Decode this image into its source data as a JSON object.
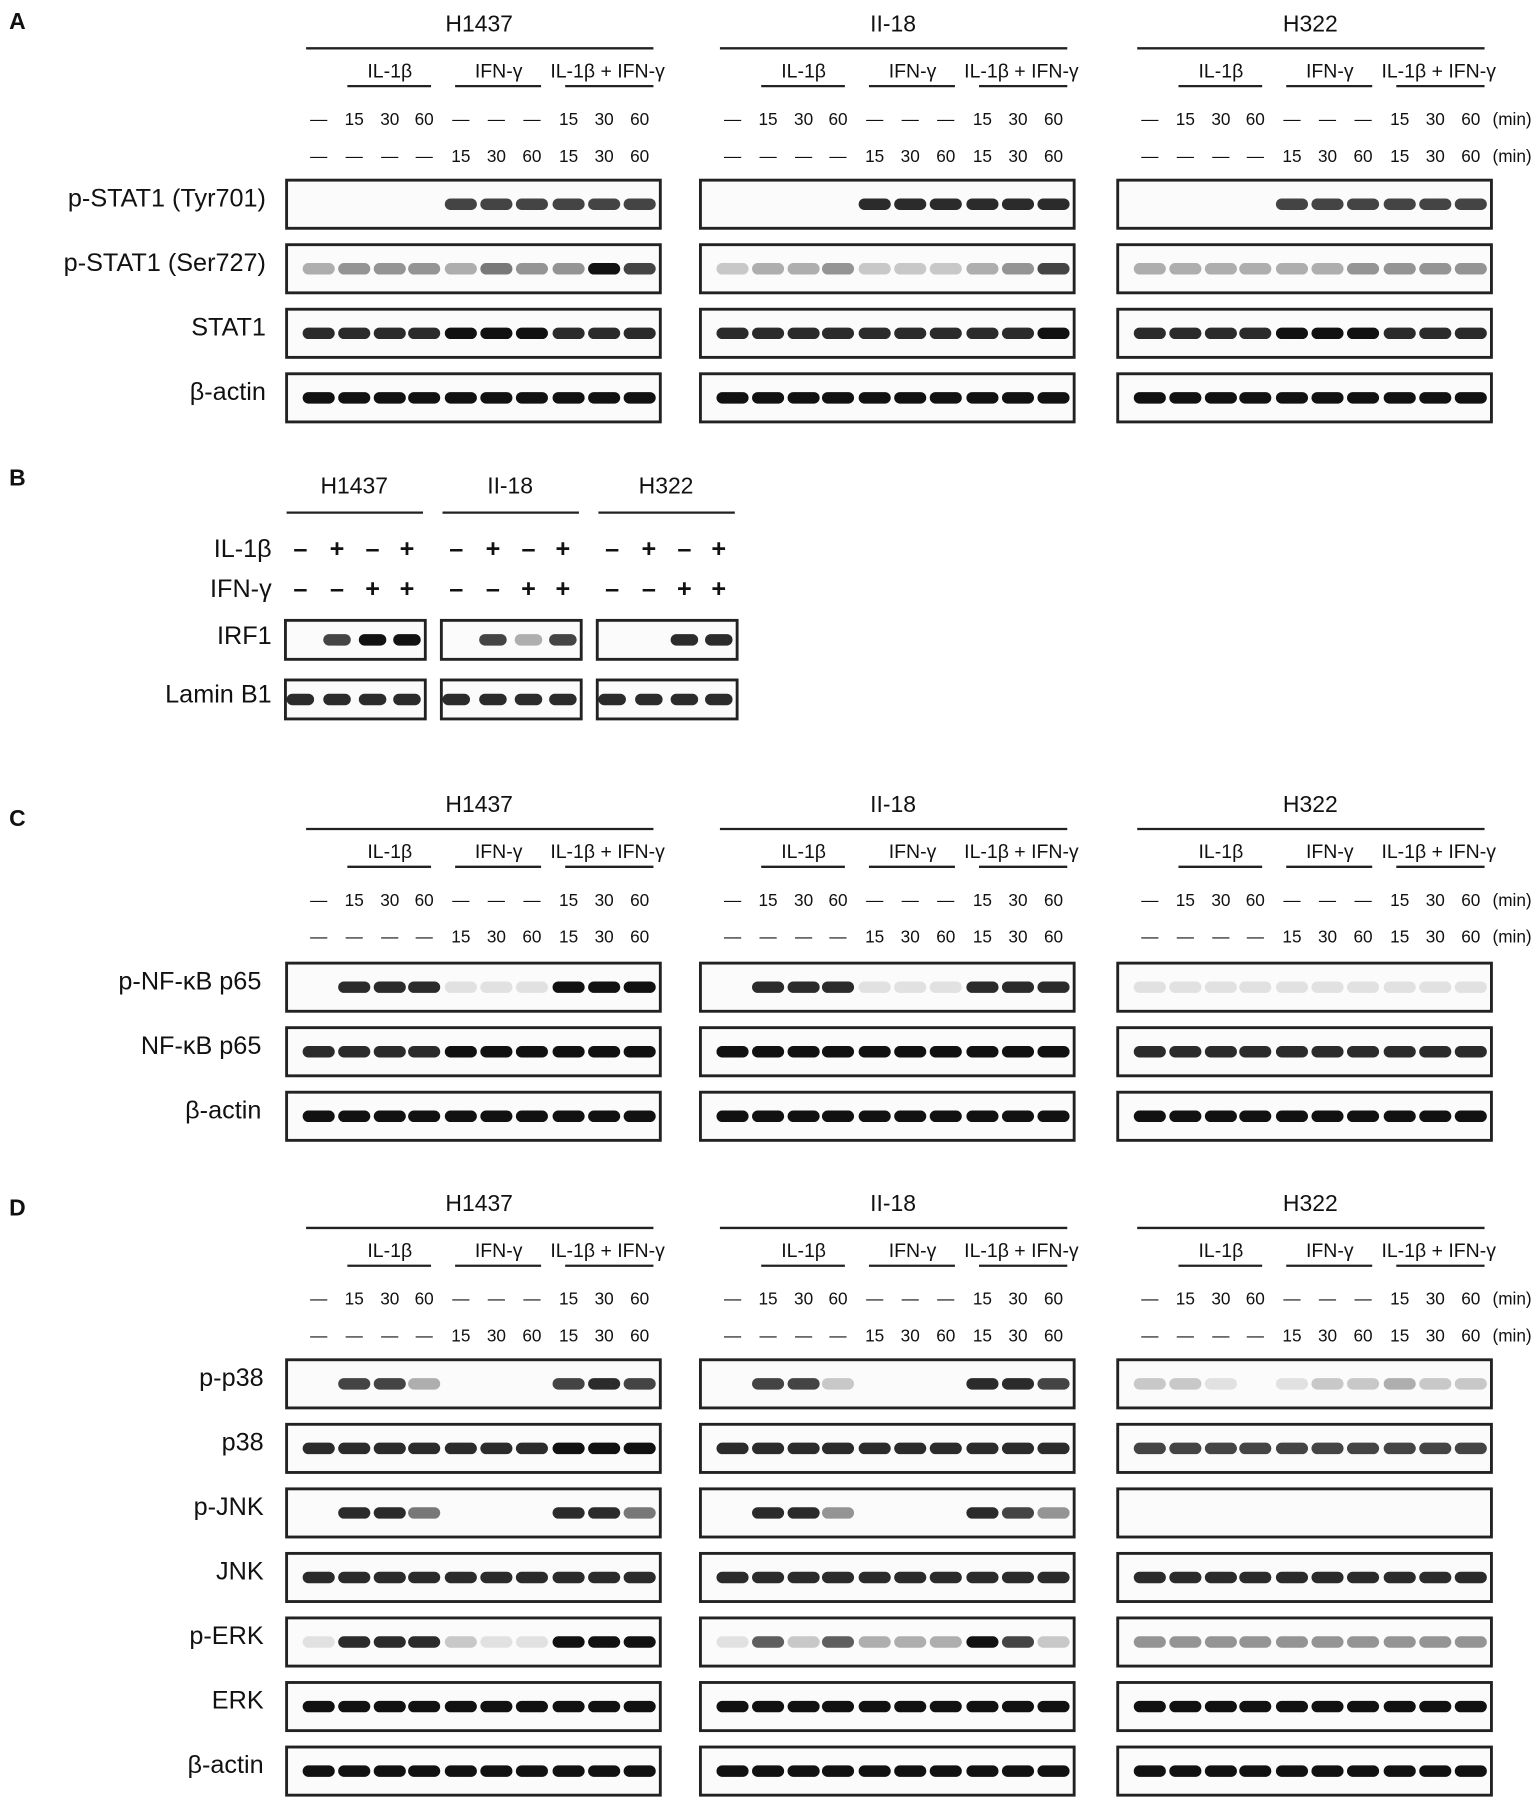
{
  "panels": [
    {
      "label": "A",
      "cell_lines": [
        "H1437",
        "II-18",
        "H322"
      ],
      "treatments": [
        "IL-1β",
        "IFN-γ",
        "IL-1β + IFN-γ"
      ],
      "il1b_times": [
        "—",
        "15",
        "30",
        "60",
        "—",
        "—",
        "—",
        "15",
        "30",
        "60"
      ],
      "ifng_times": [
        "—",
        "—",
        "—",
        "—",
        "15",
        "30",
        "60",
        "15",
        "30",
        "60"
      ],
      "time_unit": "(min)",
      "blots": [
        "p-STAT1 (Tyr701)",
        "p-STAT1 (Ser727)",
        "STAT1",
        "β-actin"
      ]
    },
    {
      "label": "B",
      "cell_lines": [
        "H1437",
        "II-18",
        "H322"
      ],
      "treatment_rows": [
        {
          "label": "IL-1β",
          "signs": [
            "–",
            "+",
            "–",
            "+"
          ]
        },
        {
          "label": "IFN-γ",
          "signs": [
            "–",
            "–",
            "+",
            "+"
          ]
        }
      ],
      "blots": [
        "IRF1",
        "Lamin B1"
      ]
    },
    {
      "label": "C",
      "cell_lines": [
        "H1437",
        "II-18",
        "H322"
      ],
      "treatments": [
        "IL-1β",
        "IFN-γ",
        "IL-1β + IFN-γ"
      ],
      "il1b_times": [
        "—",
        "15",
        "30",
        "60",
        "—",
        "—",
        "—",
        "15",
        "30",
        "60"
      ],
      "ifng_times": [
        "—",
        "—",
        "—",
        "—",
        "15",
        "30",
        "60",
        "15",
        "30",
        "60"
      ],
      "time_unit": "(min)",
      "blots": [
        "p-NF-κB p65",
        "NF-κB p65",
        "β-actin"
      ]
    },
    {
      "label": "D",
      "cell_lines": [
        "H1437",
        "II-18",
        "H322"
      ],
      "treatments": [
        "IL-1β",
        "IFN-γ",
        "IL-1β + IFN-γ"
      ],
      "il1b_times": [
        "—",
        "15",
        "30",
        "60",
        "—",
        "—",
        "—",
        "15",
        "30",
        "60"
      ],
      "ifng_times": [
        "—",
        "—",
        "—",
        "—",
        "15",
        "30",
        "60",
        "15",
        "30",
        "60"
      ],
      "time_unit": "(min)",
      "blots": [
        "p-p38",
        "p38",
        "p-JNK",
        "JNK",
        "p-ERK",
        "ERK",
        "β-actin"
      ]
    }
  ]
}
